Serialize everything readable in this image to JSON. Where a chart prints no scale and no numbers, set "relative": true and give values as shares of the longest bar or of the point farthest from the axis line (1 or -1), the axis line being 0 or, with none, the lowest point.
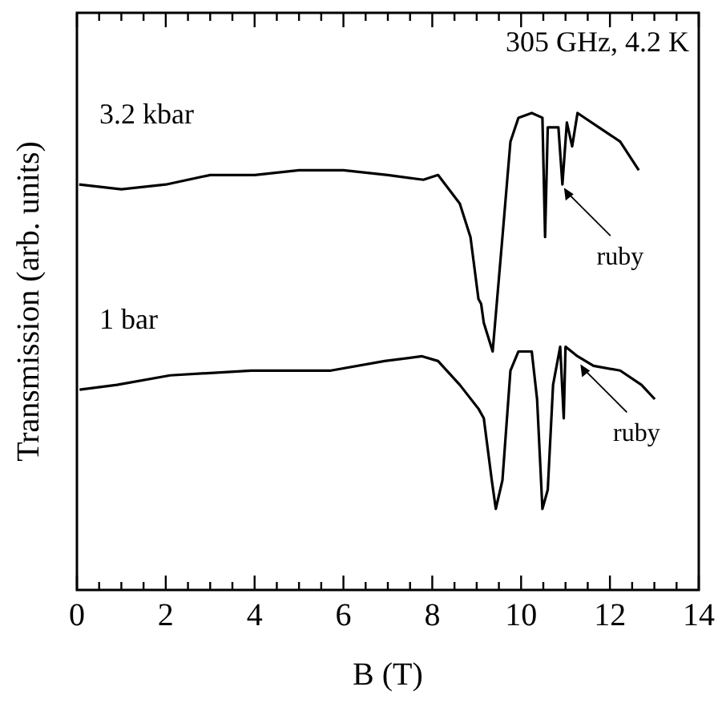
{
  "chart_data": {
    "type": "line",
    "relative": true,
    "xlabel": "B (T)",
    "ylabel": "Transmission (arb. units)",
    "xlim": [
      0,
      14
    ],
    "xticks": [
      0,
      {
        "value": 0.5,
        "label": null
      },
      {
        "value": 1,
        "label": null
      },
      {
        "value": 1.5,
        "label": null
      },
      2,
      {
        "value": 2.5,
        "label": null
      },
      {
        "value": 3,
        "label": null
      },
      {
        "value": 3.5,
        "label": null
      },
      4,
      {
        "value": 4.5,
        "label": null
      },
      {
        "value": 5,
        "label": null
      },
      {
        "value": 5.5,
        "label": null
      },
      6,
      {
        "value": 6.5,
        "label": null
      },
      {
        "value": 7,
        "label": null
      },
      {
        "value": 7.5,
        "label": null
      },
      8,
      {
        "value": 8.5,
        "label": null
      },
      {
        "value": 9,
        "label": null
      },
      {
        "value": 9.5,
        "label": null
      },
      10,
      {
        "value": 10.5,
        "label": null
      },
      {
        "value": 11,
        "label": null
      },
      {
        "value": 11.5,
        "label": null
      },
      12,
      {
        "value": 12.5,
        "label": null
      },
      {
        "value": 13,
        "label": null
      },
      {
        "value": 13.5,
        "label": null
      },
      14
    ],
    "grid": false,
    "legend": false,
    "marker": "none",
    "line_style": "solid",
    "series": [
      {
        "name": "3.2 kbar",
        "color": "#000000",
        "x": [
          0.05,
          1,
          2,
          3,
          4,
          5,
          6,
          7,
          7.8,
          8.13,
          8.62,
          8.86,
          9.04,
          9.1,
          9.16,
          9.36,
          9.58,
          9.76,
          9.94,
          10.24,
          10.48,
          10.54,
          10.6,
          10.84,
          10.93,
          11.03,
          11.15,
          11.27,
          11.75,
          12.23,
          12.65
        ],
        "values": [
          0.85,
          0.84,
          0.85,
          0.87,
          0.87,
          0.88,
          0.88,
          0.87,
          0.86,
          0.87,
          0.81,
          0.74,
          0.61,
          0.6,
          0.56,
          0.5,
          0.74,
          0.94,
          0.99,
          1,
          0.99,
          0.74,
          0.97,
          0.97,
          0.85,
          0.98,
          0.93,
          1,
          0.97,
          0.94,
          0.88
        ]
      },
      {
        "name": "1 bar",
        "color": "#000000",
        "x": [
          0.06,
          0.9,
          2.1,
          3.92,
          5.72,
          6.93,
          7.77,
          8.13,
          8.62,
          9.04,
          9.16,
          9.34,
          9.43,
          9.58,
          9.76,
          9.94,
          10.24,
          10.36,
          10.48,
          10.6,
          10.72,
          10.88,
          10.96,
          11,
          11.27,
          11.63,
          12.23,
          12.71,
          13.01
        ],
        "values": [
          0.42,
          0.43,
          0.45,
          0.46,
          0.46,
          0.48,
          0.49,
          0.48,
          0.43,
          0.38,
          0.36,
          0.23,
          0.17,
          0.23,
          0.46,
          0.5,
          0.5,
          0.4,
          0.17,
          0.21,
          0.43,
          0.51,
          0.36,
          0.51,
          0.49,
          0.47,
          0.46,
          0.43,
          0.4
        ]
      }
    ],
    "annotations": [
      "305 GHz, 4.2 K",
      {
        "text": "ruby",
        "x": 10.93,
        "y": 0.85
      },
      {
        "text": "ruby",
        "x": 11.3,
        "y": 0.48
      }
    ]
  }
}
